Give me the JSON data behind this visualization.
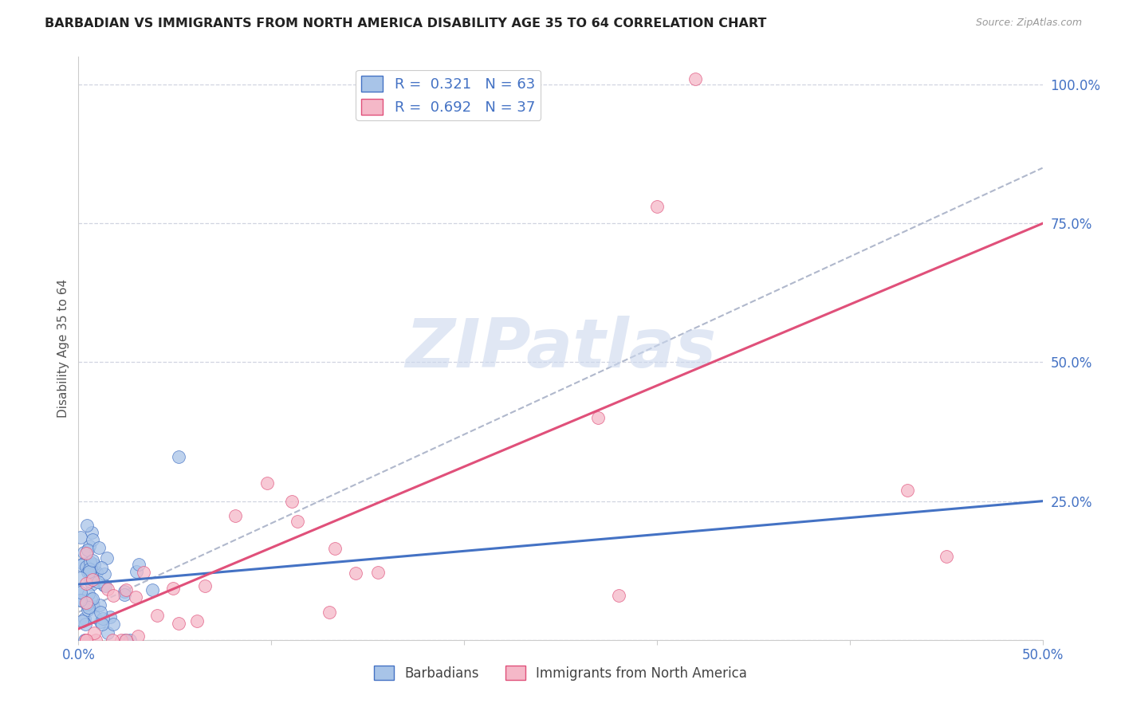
{
  "title": "BARBADIAN VS IMMIGRANTS FROM NORTH AMERICA DISABILITY AGE 35 TO 64 CORRELATION CHART",
  "source": "Source: ZipAtlas.com",
  "ylabel": "Disability Age 35 to 64",
  "xlim": [
    0.0,
    0.5
  ],
  "ylim": [
    0.0,
    1.05
  ],
  "blue_R": 0.321,
  "blue_N": 63,
  "pink_R": 0.692,
  "pink_N": 37,
  "blue_scatter_color": "#a8c4e8",
  "blue_line_color": "#4472c4",
  "pink_scatter_color": "#f5b8c8",
  "pink_line_color": "#e0507a",
  "dash_line_color": "#b0b8cc",
  "watermark": "ZIPatlas",
  "watermark_color": "#ccd8ee",
  "legend_label_blue": "Barbadians",
  "legend_label_pink": "Immigrants from North America",
  "blue_line_intercept": 0.1,
  "blue_line_slope": 0.3,
  "pink_line_intercept": 0.02,
  "pink_line_slope": 1.46,
  "dash_line_intercept": 0.05,
  "dash_line_slope": 1.6,
  "grid_color": "#d0d4e0",
  "spine_color": "#cccccc",
  "tick_color": "#4472c4",
  "title_color": "#222222",
  "source_color": "#999999",
  "ylabel_color": "#555555"
}
